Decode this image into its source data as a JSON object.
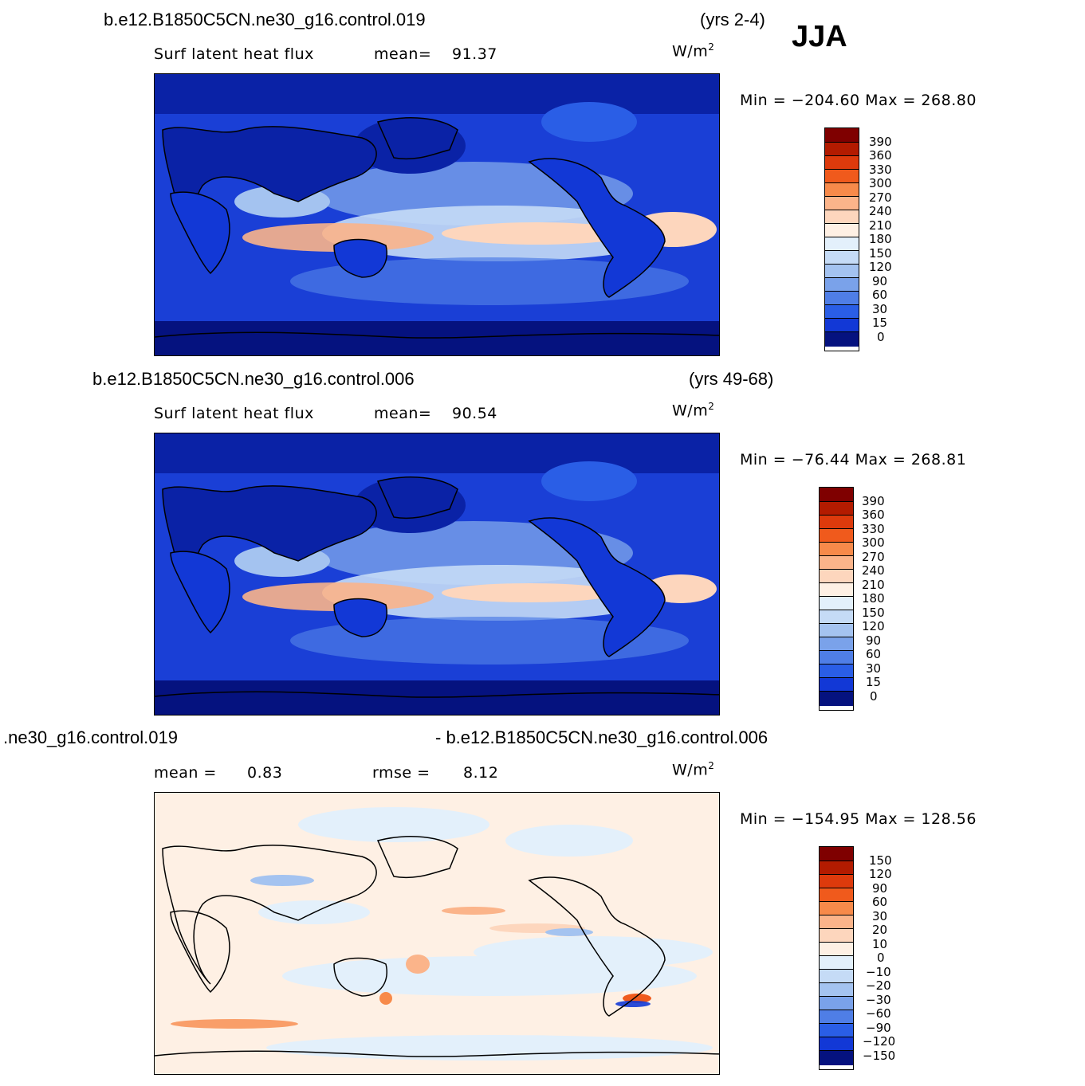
{
  "season": "JJA",
  "colors": {
    "pos": [
      "#7f0000",
      "#b31b00",
      "#dd3a0c",
      "#f05a1c",
      "#f78a4a",
      "#fbb48a",
      "#fdd6bd",
      "#fef0e4"
    ],
    "neg": [
      "#e3f0fb",
      "#c5dbf6",
      "#a4c3f0",
      "#7aa2ea",
      "#4f7ee6",
      "#2a5ee6",
      "#1238d6",
      "#0a22a6",
      "#05127f"
    ],
    "neg9": [
      "#e3f0fb",
      "#c5dbf6",
      "#a4c3f0",
      "#7aa2ea",
      "#4f7ee6",
      "#2a5ee6",
      "#1238d6",
      "#0a22a6"
    ]
  },
  "panels": [
    {
      "case": "b.e12.B1850C5CN.ne30_g16.control.019",
      "years": "(yrs 2-4)",
      "field_label": "Surf latent heat flux",
      "stat1": "mean=",
      "stat1_val": "91.37",
      "units": "W/m",
      "units_exp": "2",
      "minmax": "Min = −204.60 Max = 268.80",
      "levels": [
        "390",
        "360",
        "330",
        "300",
        "270",
        "240",
        "210",
        "180",
        "150",
        "120",
        "90",
        "60",
        "30",
        "15",
        "0"
      ]
    },
    {
      "case": "b.e12.B1850C5CN.ne30_g16.control.006",
      "years": "(yrs 49-68)",
      "field_label": "Surf latent heat flux",
      "stat1": "mean=",
      "stat1_val": "90.54",
      "units": "W/m",
      "units_exp": "2",
      "minmax": "Min = −76.44 Max = 268.81",
      "levels": [
        "390",
        "360",
        "330",
        "300",
        "270",
        "240",
        "210",
        "180",
        "150",
        "120",
        "90",
        "60",
        "30",
        "15",
        "0"
      ]
    },
    {
      "case_left": ".ne30_g16.control.019",
      "case_right": "- b.e12.B1850C5CN.ne30_g16.control.006",
      "stat1": "mean =",
      "stat1_val": "0.83",
      "stat2": "rmse =",
      "stat2_val": "8.12",
      "units": "W/m",
      "units_exp": "2",
      "minmax": "Min = −154.95 Max = 128.56",
      "levels": [
        "150",
        "120",
        "90",
        "60",
        "30",
        "20",
        "10",
        "0",
        "−10",
        "−20",
        "−30",
        "−60",
        "−90",
        "−120",
        "−150"
      ]
    }
  ]
}
